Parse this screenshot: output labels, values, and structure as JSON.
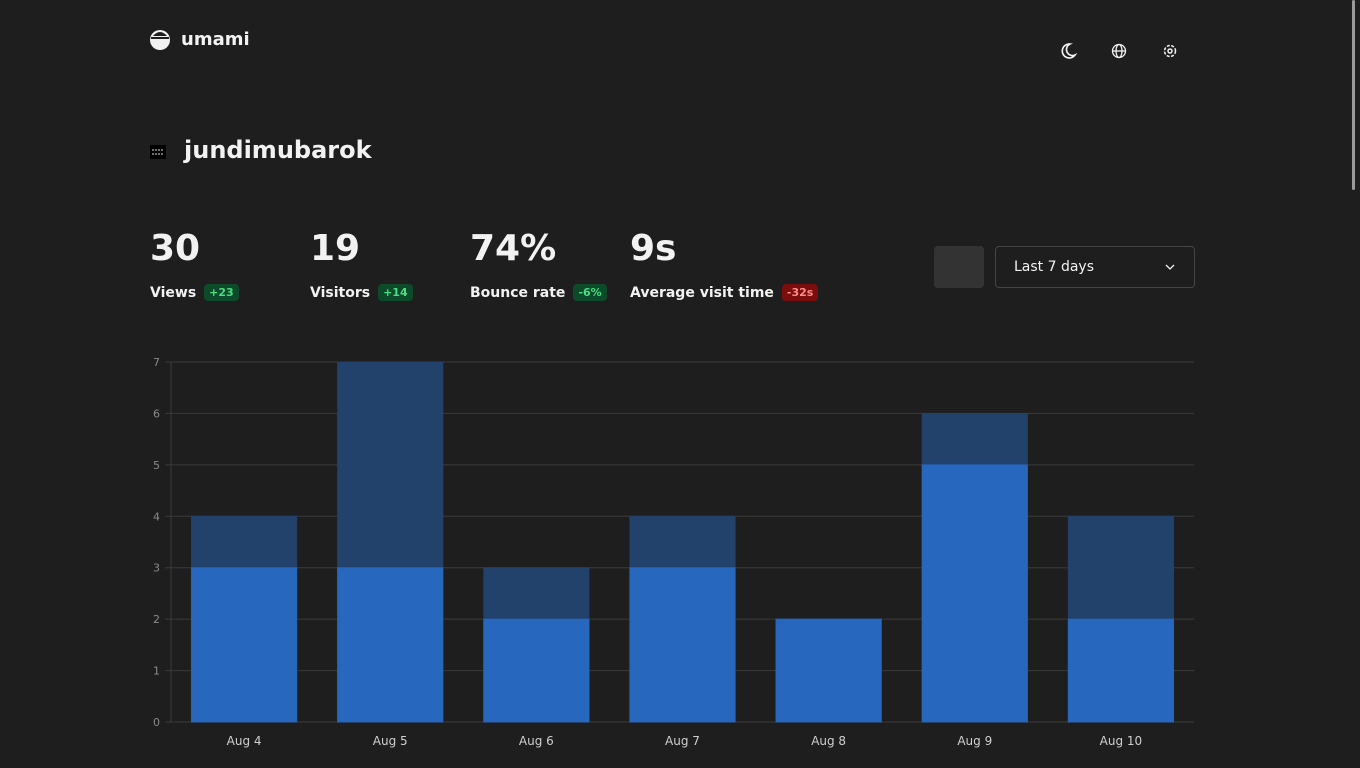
{
  "header": {
    "brand": "umami"
  },
  "website": {
    "name": "jundimubarok"
  },
  "stats": [
    {
      "value": "30",
      "label": "Views",
      "change": "+23",
      "trend": "good"
    },
    {
      "value": "19",
      "label": "Visitors",
      "change": "+14",
      "trend": "good"
    },
    {
      "value": "74%",
      "label": "Bounce rate",
      "change": "-6%",
      "trend": "good"
    },
    {
      "value": "9s",
      "label": "Average visit time",
      "change": "-32s",
      "trend": "bad"
    }
  ],
  "controls": {
    "date_range": "Last 7 days"
  },
  "chart_data": {
    "type": "bar",
    "overlap": true,
    "categories": [
      "Aug 4",
      "Aug 5",
      "Aug 6",
      "Aug 7",
      "Aug 8",
      "Aug 9",
      "Aug 10"
    ],
    "series": [
      {
        "color": "#22416b",
        "values": [
          4,
          7,
          3,
          4,
          2,
          6,
          4
        ]
      },
      {
        "color": "#2767bd",
        "values": [
          3,
          3,
          2,
          3,
          2,
          5,
          2
        ]
      }
    ],
    "ylim": [
      0,
      7
    ],
    "yticks": [
      0,
      1,
      2,
      3,
      4,
      5,
      6,
      7
    ],
    "grid": true
  }
}
